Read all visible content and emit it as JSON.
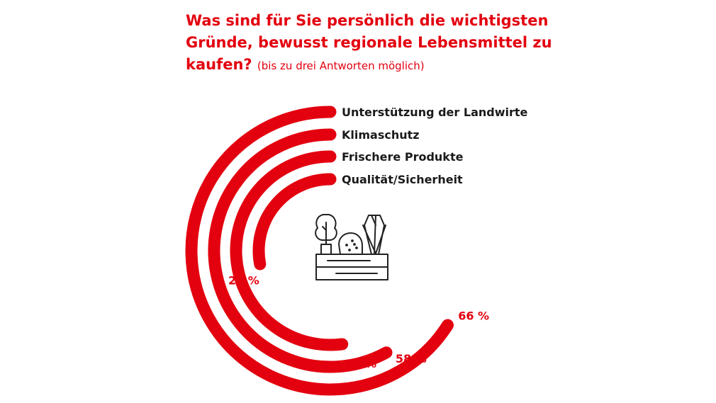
{
  "title": {
    "main": "Was sind für Sie persönlich die wichtigsten Gründe, bewusst regionale Lebensmittel zu kaufen?",
    "note": "(bis zu drei Antworten möglich)"
  },
  "colors": {
    "accent": "#e3000f",
    "icon": "#222222"
  },
  "icon": "vegetable-crate-icon",
  "chart_data": {
    "type": "radial-bar",
    "unit": "%",
    "categories": [
      "Unterstützung der Landwirte",
      "Klimaschutz",
      "Frischere Produkte",
      "Qualität/Sicherheit"
    ],
    "values": [
      66,
      58,
      52,
      28
    ],
    "value_labels": [
      "66 %",
      "58 %",
      "52 %",
      "28 %"
    ],
    "max": 100,
    "title": "Was sind für Sie persönlich die wichtigsten Gründe, bewusst regionale Lebensmittel zu kaufen?",
    "legend": "none"
  }
}
